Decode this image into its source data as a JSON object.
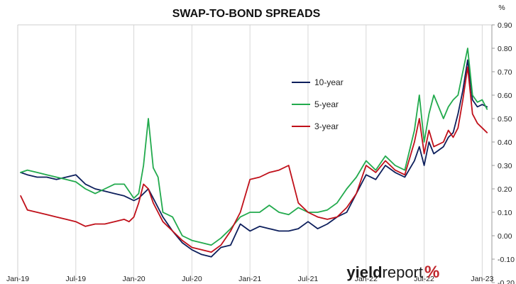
{
  "chart_data": {
    "type": "line",
    "title": "SWAP-TO-BOND SPREADS",
    "y_unit_label": "%",
    "xlabel": "",
    "ylabel": "",
    "ylim": [
      -0.2,
      0.9
    ],
    "y_ticks": [
      "0.90",
      "0.80",
      "0.70",
      "0.60",
      "0.50",
      "0.40",
      "0.30",
      "0.20",
      "0.10",
      "0.00",
      "-0.10",
      "-0.20"
    ],
    "x_ticks": [
      "Jan-19",
      "Jul-19",
      "Jan-20",
      "Jul-20",
      "Jan-21",
      "Jul-21",
      "Jan-22",
      "Jul-22",
      "Jan-23"
    ],
    "x_tick_positions": [
      0,
      6,
      12,
      18,
      24,
      30,
      36,
      42,
      48
    ],
    "xlim": [
      0,
      49
    ],
    "grid": "vertical",
    "legend_position": "center-right",
    "x_unit": "months since Jan-19",
    "series": [
      {
        "name": "10-year",
        "color": "#0d1f5c",
        "x": [
          0.3,
          1,
          2,
          3,
          4,
          5,
          6,
          7,
          8,
          9,
          10,
          11,
          11.5,
          12,
          12.5,
          13,
          13.5,
          14,
          14.5,
          15,
          16,
          17,
          18,
          19,
          20,
          21,
          22,
          23,
          24,
          25,
          26,
          27,
          28,
          29,
          30,
          31,
          32,
          33,
          34,
          35,
          36,
          37,
          38,
          39,
          40,
          41,
          41.5,
          42,
          42.5,
          43,
          44,
          44.5,
          45,
          45.5,
          46,
          46.5,
          47,
          47.5,
          48,
          48.5
        ],
        "y": [
          0.27,
          0.26,
          0.25,
          0.25,
          0.24,
          0.25,
          0.26,
          0.22,
          0.2,
          0.19,
          0.18,
          0.17,
          0.16,
          0.15,
          0.16,
          0.18,
          0.2,
          0.16,
          0.12,
          0.08,
          0.02,
          -0.03,
          -0.06,
          -0.08,
          -0.09,
          -0.05,
          -0.04,
          0.05,
          0.02,
          0.04,
          0.03,
          0.02,
          0.02,
          0.03,
          0.06,
          0.03,
          0.05,
          0.08,
          0.1,
          0.18,
          0.26,
          0.24,
          0.3,
          0.27,
          0.25,
          0.32,
          0.38,
          0.3,
          0.4,
          0.35,
          0.38,
          0.42,
          0.44,
          0.52,
          0.62,
          0.75,
          0.58,
          0.55,
          0.56,
          0.55
        ]
      },
      {
        "name": "5-year",
        "color": "#22aa4d",
        "x": [
          0.3,
          1,
          2,
          3,
          4,
          5,
          6,
          7,
          8,
          9,
          10,
          11,
          11.5,
          12,
          12.5,
          13,
          13.5,
          14,
          14.5,
          15,
          16,
          17,
          18,
          19,
          20,
          21,
          22,
          23,
          24,
          25,
          26,
          27,
          28,
          29,
          30,
          31,
          32,
          33,
          34,
          35,
          36,
          37,
          38,
          39,
          40,
          41,
          41.5,
          42,
          42.5,
          43,
          44,
          44.5,
          45,
          45.5,
          46,
          46.5,
          47,
          47.5,
          48,
          48.5
        ],
        "y": [
          0.27,
          0.28,
          0.27,
          0.26,
          0.25,
          0.24,
          0.23,
          0.2,
          0.18,
          0.2,
          0.22,
          0.22,
          0.19,
          0.16,
          0.18,
          0.3,
          0.5,
          0.29,
          0.25,
          0.1,
          0.08,
          0.0,
          -0.02,
          -0.03,
          -0.04,
          -0.01,
          0.03,
          0.08,
          0.1,
          0.1,
          0.13,
          0.1,
          0.09,
          0.12,
          0.1,
          0.1,
          0.11,
          0.14,
          0.2,
          0.25,
          0.32,
          0.28,
          0.34,
          0.3,
          0.28,
          0.45,
          0.6,
          0.4,
          0.52,
          0.6,
          0.5,
          0.55,
          0.58,
          0.6,
          0.7,
          0.8,
          0.6,
          0.57,
          0.58,
          0.54
        ]
      },
      {
        "name": "3-year",
        "color": "#c0101a",
        "x": [
          0.3,
          1,
          2,
          3,
          4,
          5,
          6,
          7,
          8,
          9,
          10,
          11,
          11.5,
          12,
          12.5,
          13,
          13.5,
          14,
          14.5,
          15,
          16,
          17,
          18,
          19,
          20,
          21,
          22,
          23,
          24,
          25,
          26,
          27,
          28,
          29,
          30,
          31,
          32,
          33,
          34,
          35,
          36,
          37,
          38,
          39,
          40,
          41,
          41.5,
          42,
          42.5,
          43,
          44,
          44.5,
          45,
          45.5,
          46,
          46.5,
          47,
          47.5,
          48,
          48.5
        ],
        "y": [
          0.17,
          0.11,
          0.1,
          0.09,
          0.08,
          0.07,
          0.06,
          0.04,
          0.05,
          0.05,
          0.06,
          0.07,
          0.06,
          0.08,
          0.14,
          0.22,
          0.2,
          0.14,
          0.1,
          0.06,
          0.02,
          -0.02,
          -0.05,
          -0.06,
          -0.07,
          -0.04,
          0.02,
          0.1,
          0.24,
          0.25,
          0.27,
          0.28,
          0.3,
          0.14,
          0.1,
          0.08,
          0.07,
          0.08,
          0.12,
          0.18,
          0.3,
          0.27,
          0.32,
          0.28,
          0.26,
          0.4,
          0.5,
          0.35,
          0.45,
          0.38,
          0.4,
          0.45,
          0.42,
          0.46,
          0.58,
          0.72,
          0.52,
          0.48,
          0.46,
          0.44
        ]
      }
    ]
  },
  "logo": {
    "part1": "yield",
    "part2": "report",
    "part3": "%"
  }
}
